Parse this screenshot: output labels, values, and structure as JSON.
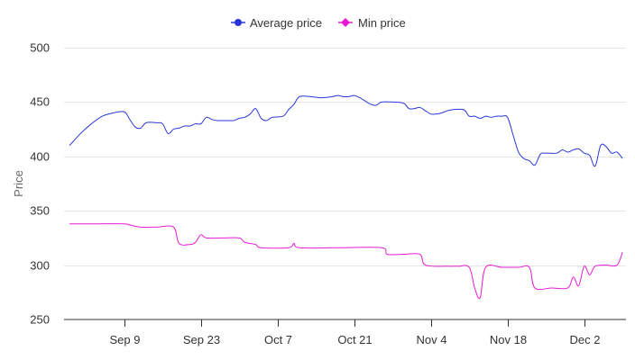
{
  "chart_data": {
    "type": "line",
    "ylabel": "Price",
    "ylim": [
      250,
      500
    ],
    "yticks": [
      250,
      300,
      350,
      400,
      450,
      500
    ],
    "xlim": [
      "2024-08-29",
      "2024-12-10"
    ],
    "xticks": [
      {
        "date": "2024-09-09",
        "label": "Sep 9"
      },
      {
        "date": "2024-09-23",
        "label": "Sep 23"
      },
      {
        "date": "2024-10-07",
        "label": "Oct 7"
      },
      {
        "date": "2024-10-21",
        "label": "Oct 21"
      },
      {
        "date": "2024-11-04",
        "label": "Nov 4"
      },
      {
        "date": "2024-11-18",
        "label": "Nov 18"
      },
      {
        "date": "2024-12-02",
        "label": "Dec 2"
      }
    ],
    "grid": true,
    "legend_position": "top-center",
    "series": [
      {
        "name": "Average price",
        "color": "#2b35d9",
        "marker": "circle",
        "points": [
          [
            "2024-08-30",
            410
          ],
          [
            "2024-09-01",
            421
          ],
          [
            "2024-09-03",
            430
          ],
          [
            "2024-09-05",
            437
          ],
          [
            "2024-09-07",
            440
          ],
          [
            "2024-09-09",
            441
          ],
          [
            "2024-09-10",
            434
          ],
          [
            "2024-09-11",
            427
          ],
          [
            "2024-09-12",
            426
          ],
          [
            "2024-09-13",
            431
          ],
          [
            "2024-09-15",
            431
          ],
          [
            "2024-09-16",
            430
          ],
          [
            "2024-09-17",
            421
          ],
          [
            "2024-09-18",
            425
          ],
          [
            "2024-09-19",
            426
          ],
          [
            "2024-09-20",
            428
          ],
          [
            "2024-09-21",
            428
          ],
          [
            "2024-09-22",
            430
          ],
          [
            "2024-09-23",
            430
          ],
          [
            "2024-09-24",
            436
          ],
          [
            "2024-09-25",
            434
          ],
          [
            "2024-09-26",
            433
          ],
          [
            "2024-09-28",
            433
          ],
          [
            "2024-09-29",
            433
          ],
          [
            "2024-09-30",
            435
          ],
          [
            "2024-10-01",
            436
          ],
          [
            "2024-10-02",
            439
          ],
          [
            "2024-10-03",
            444
          ],
          [
            "2024-10-04",
            435
          ],
          [
            "2024-10-05",
            433
          ],
          [
            "2024-10-06",
            436
          ],
          [
            "2024-10-08",
            437
          ],
          [
            "2024-10-09",
            443
          ],
          [
            "2024-10-10",
            448
          ],
          [
            "2024-10-11",
            455
          ],
          [
            "2024-10-13",
            455
          ],
          [
            "2024-10-15",
            454
          ],
          [
            "2024-10-17",
            455
          ],
          [
            "2024-10-18",
            456
          ],
          [
            "2024-10-19",
            455
          ],
          [
            "2024-10-20",
            455
          ],
          [
            "2024-10-21",
            456
          ],
          [
            "2024-10-22",
            454
          ],
          [
            "2024-10-23",
            451
          ],
          [
            "2024-10-24",
            448
          ],
          [
            "2024-10-25",
            447
          ],
          [
            "2024-10-26",
            450
          ],
          [
            "2024-10-28",
            450
          ],
          [
            "2024-10-30",
            449
          ],
          [
            "2024-10-31",
            444
          ],
          [
            "2024-11-01",
            444
          ],
          [
            "2024-11-02",
            445
          ],
          [
            "2024-11-03",
            442
          ],
          [
            "2024-11-04",
            439
          ],
          [
            "2024-11-05",
            439
          ],
          [
            "2024-11-06",
            440
          ],
          [
            "2024-11-07",
            442
          ],
          [
            "2024-11-08",
            443
          ],
          [
            "2024-11-10",
            443
          ],
          [
            "2024-11-11",
            437
          ],
          [
            "2024-11-12",
            437
          ],
          [
            "2024-11-13",
            435
          ],
          [
            "2024-11-14",
            437
          ],
          [
            "2024-11-15",
            436
          ],
          [
            "2024-11-16",
            437
          ],
          [
            "2024-11-17",
            437
          ],
          [
            "2024-11-18",
            436
          ],
          [
            "2024-11-19",
            420
          ],
          [
            "2024-11-20",
            404
          ],
          [
            "2024-11-21",
            398
          ],
          [
            "2024-11-22",
            396
          ],
          [
            "2024-11-23",
            392
          ],
          [
            "2024-11-24",
            402
          ],
          [
            "2024-11-25",
            403
          ],
          [
            "2024-11-27",
            403
          ],
          [
            "2024-11-28",
            406
          ],
          [
            "2024-11-29",
            404
          ],
          [
            "2024-11-30",
            406
          ],
          [
            "2024-12-01",
            407
          ],
          [
            "2024-12-02",
            403
          ],
          [
            "2024-12-03",
            401
          ],
          [
            "2024-12-04",
            391
          ],
          [
            "2024-12-05",
            410
          ],
          [
            "2024-12-06",
            409
          ],
          [
            "2024-12-07",
            403
          ],
          [
            "2024-12-08",
            404
          ],
          [
            "2024-12-09",
            398
          ],
          [
            "2024-12-10",
            403
          ]
        ]
      },
      {
        "name": "Min price",
        "color": "#e81bd2",
        "marker": "diamond",
        "points": [
          [
            "2024-08-30",
            338
          ],
          [
            "2024-09-04",
            338
          ],
          [
            "2024-09-09",
            338
          ],
          [
            "2024-09-10",
            337
          ],
          [
            "2024-09-12",
            335
          ],
          [
            "2024-09-15",
            335
          ],
          [
            "2024-09-18",
            335
          ],
          [
            "2024-09-19",
            320
          ],
          [
            "2024-09-21",
            319
          ],
          [
            "2024-09-22",
            321
          ],
          [
            "2024-09-23",
            328
          ],
          [
            "2024-09-24",
            325
          ],
          [
            "2024-09-27",
            325
          ],
          [
            "2024-09-30",
            325
          ],
          [
            "2024-10-01",
            321
          ],
          [
            "2024-10-03",
            319
          ],
          [
            "2024-10-04",
            316
          ],
          [
            "2024-10-09",
            316
          ],
          [
            "2024-10-10",
            320
          ],
          [
            "2024-10-11",
            316
          ],
          [
            "2024-10-18",
            316
          ],
          [
            "2024-10-26",
            316
          ],
          [
            "2024-10-27",
            310
          ],
          [
            "2024-10-30",
            310
          ],
          [
            "2024-11-02",
            310
          ],
          [
            "2024-11-03",
            300
          ],
          [
            "2024-11-07",
            299
          ],
          [
            "2024-11-09",
            299
          ],
          [
            "2024-11-11",
            298
          ],
          [
            "2024-11-12",
            279
          ],
          [
            "2024-11-13",
            270
          ],
          [
            "2024-11-14",
            298
          ],
          [
            "2024-11-17",
            298
          ],
          [
            "2024-11-20",
            298
          ],
          [
            "2024-11-22",
            298
          ],
          [
            "2024-11-23",
            279
          ],
          [
            "2024-11-26",
            279
          ],
          [
            "2024-11-29",
            279
          ],
          [
            "2024-11-30",
            289
          ],
          [
            "2024-12-01",
            281
          ],
          [
            "2024-12-02",
            299
          ],
          [
            "2024-12-03",
            291
          ],
          [
            "2024-12-04",
            299
          ],
          [
            "2024-12-06",
            300
          ],
          [
            "2024-12-08",
            300
          ],
          [
            "2024-12-09",
            312
          ],
          [
            "2024-12-10",
            296
          ],
          [
            "2024-12-11",
            312
          ],
          [
            "2024-12-12",
            312
          ]
        ]
      }
    ]
  }
}
